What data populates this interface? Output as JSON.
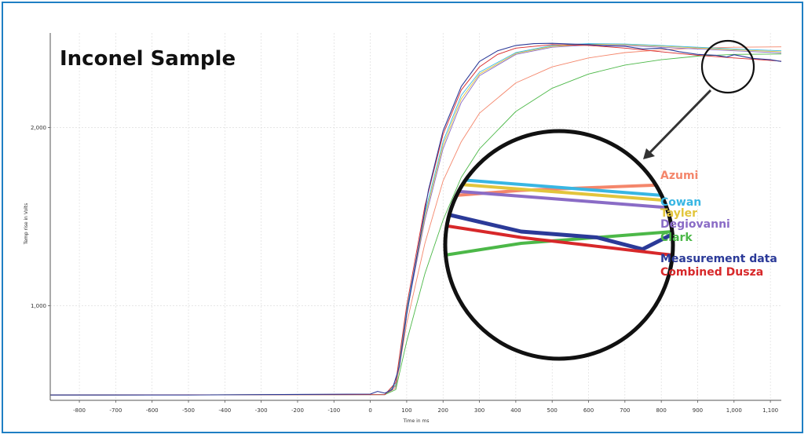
{
  "chart_data": {
    "type": "line",
    "title": "Inconel Sample",
    "xlabel": "Time in ms",
    "ylabel": "Temp rise in Volts",
    "xlim": [
      -880,
      1130
    ],
    "ylim": [
      470,
      2530
    ],
    "xticks": [
      -800,
      -700,
      -600,
      -500,
      -400,
      -300,
      -200,
      -100,
      0,
      100,
      200,
      300,
      400,
      500,
      600,
      700,
      800,
      900,
      1000,
      1100
    ],
    "xtick_labels": [
      "-800",
      "-700",
      "-600",
      "-500",
      "-400",
      "-300",
      "-200",
      "-100",
      "0",
      "100",
      "200",
      "300",
      "400",
      "500",
      "600",
      "700",
      "800",
      "900",
      "1,000",
      "1,100"
    ],
    "yticks": [
      1000,
      2000
    ],
    "ytick_labels": [
      "1,000",
      "2,000"
    ],
    "grid": true,
    "legend_position": "inset",
    "series": [
      {
        "name": "Azumi",
        "color": "#f4866b",
        "x": [
          -880,
          40,
          70,
          100,
          150,
          200,
          250,
          300,
          400,
          500,
          600,
          700,
          800,
          900,
          1000,
          1130
        ],
        "y": [
          500,
          502,
          540,
          900,
          1350,
          1700,
          1920,
          2080,
          2250,
          2340,
          2390,
          2420,
          2435,
          2445,
          2450,
          2452
        ]
      },
      {
        "name": "Cowan",
        "color": "#38b6e3",
        "x": [
          -880,
          40,
          70,
          100,
          150,
          200,
          250,
          300,
          400,
          500,
          600,
          700,
          800,
          900,
          1000,
          1130
        ],
        "y": [
          500,
          502,
          560,
          980,
          1520,
          1920,
          2180,
          2310,
          2420,
          2460,
          2470,
          2468,
          2460,
          2450,
          2440,
          2430
        ]
      },
      {
        "name": "Tayler",
        "color": "#e2c53c",
        "x": [
          -880,
          40,
          70,
          100,
          150,
          200,
          250,
          300,
          400,
          500,
          600,
          700,
          800,
          900,
          1000,
          1130
        ],
        "y": [
          500,
          502,
          555,
          970,
          1500,
          1900,
          2160,
          2300,
          2415,
          2455,
          2466,
          2465,
          2456,
          2446,
          2436,
          2425
        ]
      },
      {
        "name": "Degiovanni",
        "color": "#8a6cc6",
        "x": [
          -880,
          40,
          70,
          100,
          150,
          200,
          250,
          300,
          400,
          500,
          600,
          700,
          800,
          900,
          1000,
          1130
        ],
        "y": [
          500,
          502,
          550,
          960,
          1480,
          1880,
          2140,
          2290,
          2410,
          2450,
          2462,
          2460,
          2450,
          2440,
          2430,
          2418
        ]
      },
      {
        "name": "Clark",
        "color": "#4cb848",
        "x": [
          -880,
          40,
          70,
          100,
          150,
          200,
          250,
          300,
          400,
          500,
          600,
          700,
          800,
          900,
          1000,
          1130
        ],
        "y": [
          500,
          502,
          530,
          800,
          1180,
          1480,
          1720,
          1880,
          2090,
          2220,
          2300,
          2350,
          2380,
          2400,
          2410,
          2412
        ]
      },
      {
        "name": "Measurement data",
        "color": "#2b3a98",
        "x": [
          -880,
          -500,
          0,
          20,
          40,
          60,
          80,
          100,
          130,
          160,
          200,
          250,
          300,
          350,
          400,
          450,
          500,
          550,
          600,
          650,
          700,
          750,
          800,
          850,
          900,
          950,
          980,
          1000,
          1050,
          1100,
          1130
        ],
        "y": [
          500,
          500,
          505,
          520,
          510,
          530,
          660,
          950,
          1300,
          1650,
          1980,
          2230,
          2370,
          2430,
          2460,
          2470,
          2472,
          2468,
          2465,
          2458,
          2455,
          2440,
          2445,
          2425,
          2410,
          2405,
          2395,
          2408,
          2388,
          2380,
          2370
        ]
      },
      {
        "name": "Combined Dusza",
        "color": "#d7282a",
        "x": [
          -880,
          40,
          70,
          100,
          150,
          200,
          250,
          300,
          350,
          400,
          500,
          600,
          700,
          800,
          900,
          1000,
          1130
        ],
        "y": [
          500,
          502,
          570,
          1000,
          1560,
          1960,
          2210,
          2340,
          2410,
          2445,
          2465,
          2460,
          2445,
          2425,
          2405,
          2390,
          2372
        ]
      }
    ]
  }
}
